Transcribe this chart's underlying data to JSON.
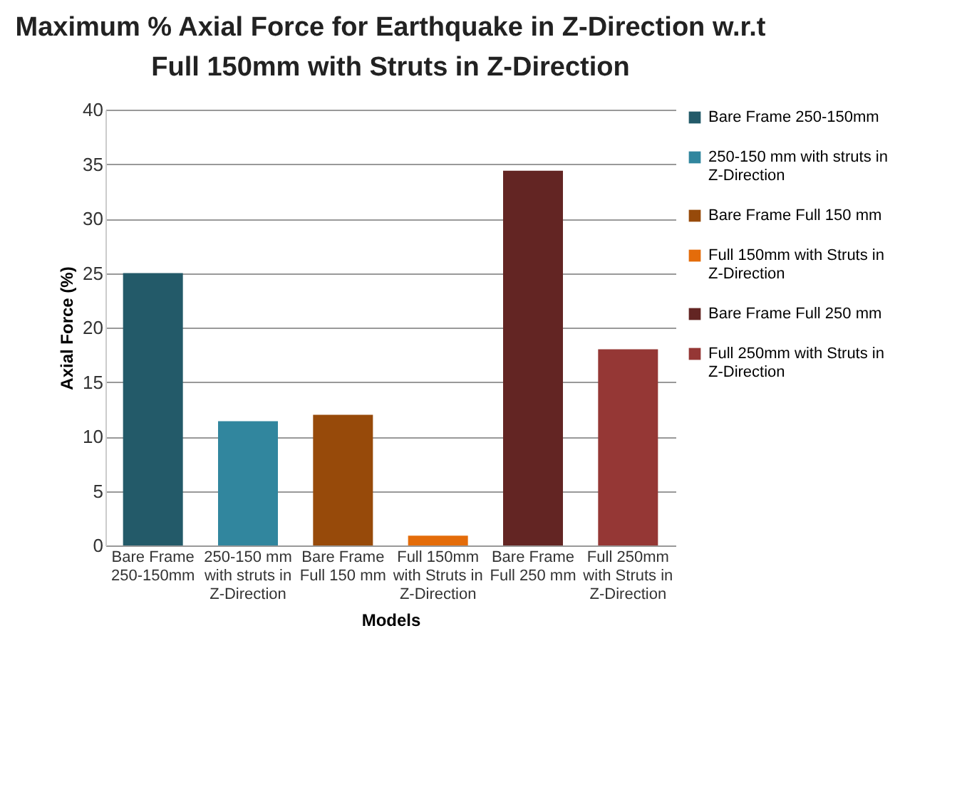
{
  "chart_data": {
    "type": "bar",
    "title": "Maximum % Axial Force for Earthquake in Z-Direction w.r.t Full 150mm with Struts in Z-Direction",
    "xlabel": "Models",
    "ylabel": "Axial Force (%)",
    "categories": [
      "Bare Frame 250-150mm",
      "250-150 mm with struts in Z-Direction",
      "Bare Frame Full 150 mm",
      "Full 150mm with Struts in Z-Direction",
      "Bare Frame Full 250 mm",
      "Full 250mm with Struts in Z-Direction"
    ],
    "series": [
      {
        "name": "Bare Frame 250-150mm",
        "color": "#235a69",
        "values": [
          25,
          null,
          null,
          null,
          null,
          null
        ]
      },
      {
        "name": "250-150 mm with struts in Z-Direction",
        "color": "#31869e",
        "values": [
          null,
          11.4,
          null,
          null,
          null,
          null
        ]
      },
      {
        "name": "Bare Frame Full 150 mm",
        "color": "#974a0a",
        "values": [
          null,
          null,
          12.0,
          null,
          null,
          null
        ]
      },
      {
        "name": "Full 150mm with Struts in Z-Direction",
        "color": "#e46c0a",
        "values": [
          null,
          null,
          null,
          0.9,
          null,
          null
        ]
      },
      {
        "name": "Bare Frame Full 250 mm",
        "color": "#632523",
        "values": [
          null,
          null,
          null,
          null,
          34.4,
          null
        ]
      },
      {
        "name": "Full 250mm with Struts in Z-Direction",
        "color": "#953735",
        "values": [
          null,
          null,
          null,
          null,
          null,
          18.0
        ]
      }
    ],
    "ylim": [
      0,
      40
    ],
    "yticks": [
      0,
      5,
      10,
      15,
      20,
      25,
      30,
      35,
      40
    ],
    "grid": "y",
    "legend": "right"
  }
}
